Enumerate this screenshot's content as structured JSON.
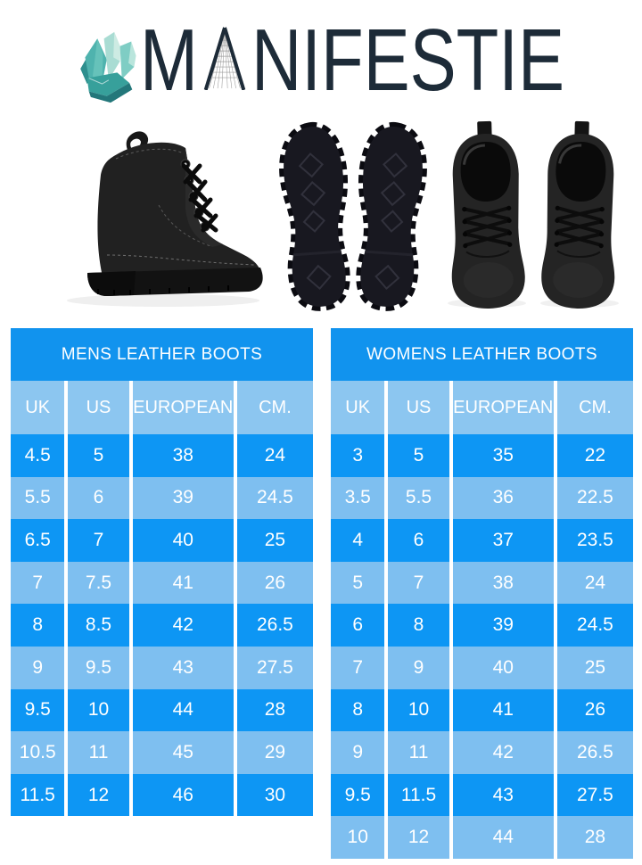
{
  "logo": {
    "brand_m": "M",
    "brand_rest": "NIFESTIE",
    "brand_full": "MANIFESTIE",
    "icon": "crystal-cluster-icon"
  },
  "products": {
    "side_view": "black-leather-boot-side-view",
    "soles_view": "boot-soles-bottom-view",
    "top_view": "boots-pair-top-view"
  },
  "colors": {
    "title_bg": "#1193EE",
    "head_bg": "#8CC6F0",
    "row_dark": "#0D96F4",
    "row_light": "#7EBFF0",
    "cell_text": "#FFFFFF",
    "brand_text": "#1D2B38",
    "crystal_teal": "#41A8A3"
  },
  "chart_data": [
    {
      "type": "table",
      "title": "MENS LEATHER BOOTS",
      "columns": [
        "UK",
        "US",
        "EUROPEAN",
        "CM."
      ],
      "rows": [
        [
          "4.5",
          "5",
          "38",
          "24"
        ],
        [
          "5.5",
          "6",
          "39",
          "24.5"
        ],
        [
          "6.5",
          "7",
          "40",
          "25"
        ],
        [
          "7",
          "7.5",
          "41",
          "26"
        ],
        [
          "8",
          "8.5",
          "42",
          "26.5"
        ],
        [
          "9",
          "9.5",
          "43",
          "27.5"
        ],
        [
          "9.5",
          "10",
          "44",
          "28"
        ],
        [
          "10.5",
          "11",
          "45",
          "29"
        ],
        [
          "11.5",
          "12",
          "46",
          "30"
        ]
      ]
    },
    {
      "type": "table",
      "title": "WOMENS LEATHER BOOTS",
      "columns": [
        "UK",
        "US",
        "EUROPEAN",
        "CM."
      ],
      "rows": [
        [
          "3",
          "5",
          "35",
          "22"
        ],
        [
          "3.5",
          "5.5",
          "36",
          "22.5"
        ],
        [
          "4",
          "6",
          "37",
          "23.5"
        ],
        [
          "5",
          "7",
          "38",
          "24"
        ],
        [
          "6",
          "8",
          "39",
          "24.5"
        ],
        [
          "7",
          "9",
          "40",
          "25"
        ],
        [
          "8",
          "10",
          "41",
          "26"
        ],
        [
          "9",
          "11",
          "42",
          "26.5"
        ],
        [
          "9.5",
          "11.5",
          "43",
          "27.5"
        ],
        [
          "10",
          "12",
          "44",
          "28"
        ]
      ]
    }
  ]
}
